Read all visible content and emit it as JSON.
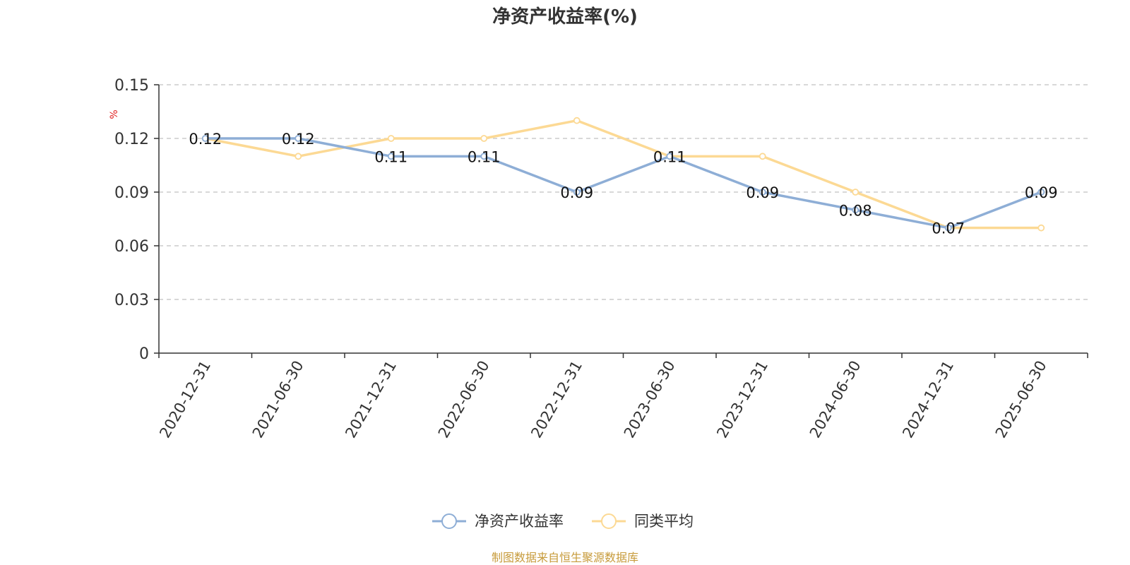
{
  "chart_data": {
    "type": "line",
    "title": "净资产收益率(%)",
    "ylabel": "%",
    "ylim": [
      0,
      0.15
    ],
    "yticks": [
      "0",
      "0.03",
      "0.06",
      "0.09",
      "0.12",
      "0.15"
    ],
    "grid": true,
    "legend_position": "bottom",
    "categories": [
      "2020-12-31",
      "2021-06-30",
      "2021-12-31",
      "2022-06-30",
      "2022-12-31",
      "2023-06-30",
      "2023-12-31",
      "2024-06-30",
      "2024-12-31",
      "2025-06-30"
    ],
    "series": [
      {
        "name": "净资产收益率",
        "color": "#8eaed6",
        "values": [
          0.12,
          0.12,
          0.11,
          0.11,
          0.09,
          0.11,
          0.09,
          0.08,
          0.07,
          0.09
        ],
        "labels": [
          "0.12",
          "0.12",
          "0.11",
          "0.11",
          "0.09",
          "0.11",
          "0.09",
          "0.08",
          "0.07",
          "0.09"
        ]
      },
      {
        "name": "同类平均",
        "color": "#fcd994",
        "values": [
          0.12,
          0.11,
          0.12,
          0.12,
          0.13,
          0.11,
          0.11,
          0.09,
          0.07,
          0.07
        ]
      }
    ]
  },
  "source": "制图数据来自恒生聚源数据库"
}
